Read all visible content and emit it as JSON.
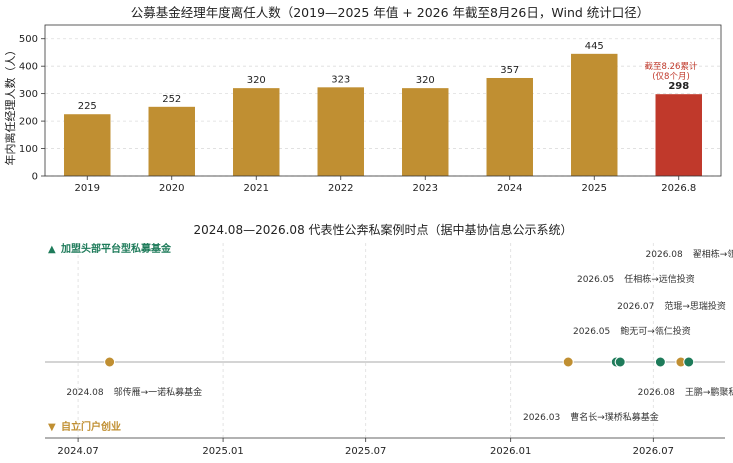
{
  "chart_data": [
    {
      "type": "bar",
      "title": "公募基金经理年度离任人数（2019—2025 年值 + 2026 年截至8月26日，Wind 统计口径）",
      "xlabel": "",
      "ylabel": "年内离任经理人数（人）",
      "ylim": [
        0,
        550
      ],
      "yticks": [
        0,
        100,
        200,
        300,
        400,
        500
      ],
      "grid": true,
      "categories": [
        "2019",
        "2020",
        "2021",
        "2022",
        "2023",
        "2024",
        "2025",
        "2026.8"
      ],
      "values": [
        225,
        252,
        320,
        323,
        320,
        357,
        445,
        298
      ],
      "colors": {
        "normal": "#C08F32",
        "highlight": "#C0392B",
        "grid": "#dddddd"
      },
      "highlight_index": 7,
      "annotation": {
        "line1": "截至8.26累计",
        "line2": "(仅8个月)",
        "color": "#C0392B"
      }
    },
    {
      "type": "scatter",
      "title": "2024.08—2026.08 代表性公奔私案例时点（据中基协信息公示系统）",
      "xlim": [
        "2024-05-20",
        "2026-09-30"
      ],
      "x_ticks": [
        "2024.07",
        "2025.01",
        "2025.07",
        "2026.01",
        "2026.07"
      ],
      "x_tick_dates": [
        "2024-07-01",
        "2025-01-01",
        "2025-07-01",
        "2026-01-01",
        "2026-07-01"
      ],
      "legend": {
        "platform": {
          "marker": "▲",
          "label": "加盟头部平台型私募基金",
          "color": "#1E7B5A"
        },
        "self": {
          "marker": "▼",
          "label": "自立门户创业",
          "color": "#C08F32"
        }
      },
      "axis_color": "#aaaaaa",
      "events": [
        {
          "date": "2024-08-10",
          "kind": "self",
          "date_label": "2024.08",
          "text": "邬传雁→一诺私募基金"
        },
        {
          "date": "2026-03-15",
          "kind": "self",
          "date_label": "2026.03",
          "text": "曹名长→璞桥私募基金"
        },
        {
          "date": "2026-05-15",
          "kind": "platform",
          "date_label": "2026.05",
          "text": "鲍无可→瓴仁投资"
        },
        {
          "date": "2026-05-20",
          "kind": "platform",
          "date_label": "2026.05",
          "text": "任相栋→远信投资"
        },
        {
          "date": "2026-07-10",
          "kind": "platform",
          "date_label": "2026.07",
          "text": "范琨→思瑞投资"
        },
        {
          "date": "2026-08-05",
          "kind": "self",
          "date_label": "2026.08",
          "text": "王鹏→鹏聚私募基金"
        },
        {
          "date": "2026-08-15",
          "kind": "platform",
          "date_label": "2026.08",
          "text": "翟相栋→瓴仁投资"
        }
      ]
    }
  ]
}
